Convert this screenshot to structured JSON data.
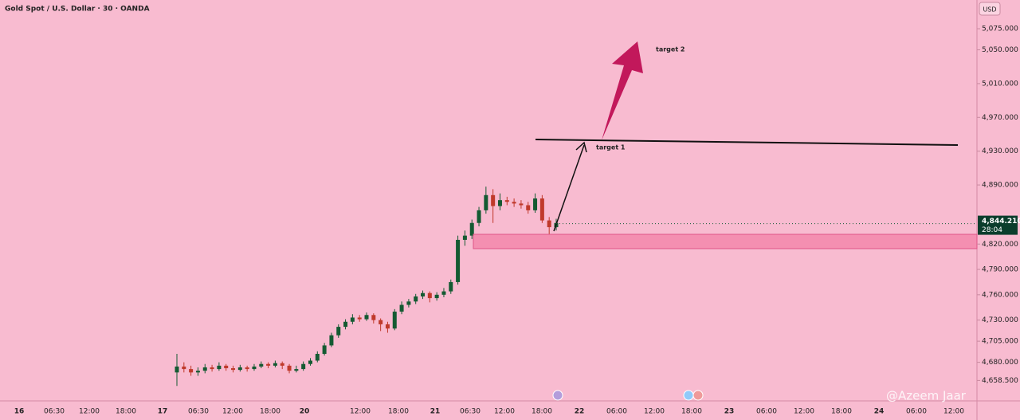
{
  "chart_data": {
    "type": "candlestick",
    "title": "Gold Spot / U.S. Dollar · 30 · OANDA",
    "currency": "USD",
    "ylim": [
      4640,
      5109
    ],
    "yticks": [
      {
        "value": 5075,
        "label": "5,075.000"
      },
      {
        "value": 5050,
        "label": "5,050.000"
      },
      {
        "value": 5010,
        "label": "5,010.000"
      },
      {
        "value": 4970,
        "label": "4,970.000"
      },
      {
        "value": 4930,
        "label": "4,930.000"
      },
      {
        "value": 4890,
        "label": "4,890.000"
      },
      {
        "value": 4820,
        "label": "4,820.000"
      },
      {
        "value": 4790,
        "label": "4,790.000"
      },
      {
        "value": 4760,
        "label": "4,760.000"
      },
      {
        "value": 4730,
        "label": "4,730.000"
      },
      {
        "value": 4705,
        "label": "4,705.000"
      },
      {
        "value": 4680,
        "label": "4,680.000"
      },
      {
        "value": 4658.5,
        "label": "4,658.500"
      }
    ],
    "x_labels": [
      "16",
      "06:30",
      "12:00",
      "18:00",
      "17",
      "06:30",
      "12:00",
      "18:00",
      "20",
      "12:00",
      "18:00",
      "21",
      "06:30",
      "12:00",
      "18:00",
      "22",
      "06:00",
      "12:00",
      "18:00",
      "23",
      "06:00",
      "12:00",
      "18:00",
      "24",
      "06:00",
      "12:00"
    ],
    "up_color": "#145a32",
    "down_color": "#c0392b",
    "open": [
      4668,
      4675,
      4672,
      4668,
      4670,
      4674,
      4672,
      4676,
      4673,
      4671,
      4674,
      4672,
      4675,
      4678,
      4676,
      4679,
      4676,
      4670,
      4672,
      4678,
      4682,
      4690,
      4700,
      4712,
      4722,
      4728,
      4733,
      4731,
      4736,
      4730,
      4725,
      4720,
      4740,
      4748,
      4752,
      4758,
      4762,
      4756,
      4760,
      4764,
      4775,
      4825,
      4830,
      4845,
      4860,
      4878,
      4865,
      4872,
      4870,
      4868,
      4866,
      4860,
      4874,
      4848,
      4840
    ],
    "high": [
      4690,
      4680,
      4676,
      4674,
      4678,
      4677,
      4680,
      4678,
      4676,
      4677,
      4676,
      4678,
      4681,
      4680,
      4682,
      4681,
      4678,
      4676,
      4681,
      4685,
      4693,
      4703,
      4715,
      4725,
      4731,
      4737,
      4736,
      4739,
      4738,
      4732,
      4728,
      4743,
      4752,
      4755,
      4761,
      4765,
      4764,
      4763,
      4768,
      4778,
      4830,
      4836,
      4849,
      4864,
      4888,
      4885,
      4880,
      4876,
      4874,
      4872,
      4870,
      4880,
      4878,
      4852,
      4850
    ],
    "low": [
      4652,
      4668,
      4664,
      4664,
      4667,
      4669,
      4670,
      4670,
      4668,
      4669,
      4669,
      4670,
      4673,
      4673,
      4674,
      4672,
      4667,
      4668,
      4670,
      4676,
      4680,
      4688,
      4698,
      4709,
      4719,
      4725,
      4728,
      4729,
      4726,
      4717,
      4715,
      4718,
      4737,
      4745,
      4749,
      4755,
      4751,
      4753,
      4757,
      4761,
      4772,
      4818,
      4826,
      4841,
      4856,
      4845,
      4860,
      4866,
      4864,
      4862,
      4856,
      4857,
      4845,
      4823,
      4836
    ],
    "close": [
      4675,
      4672,
      4668,
      4670,
      4674,
      4672,
      4676,
      4673,
      4671,
      4674,
      4672,
      4675,
      4678,
      4676,
      4679,
      4676,
      4670,
      4672,
      4678,
      4682,
      4690,
      4700,
      4712,
      4722,
      4728,
      4733,
      4731,
      4736,
      4730,
      4725,
      4720,
      4740,
      4748,
      4752,
      4758,
      4762,
      4756,
      4760,
      4764,
      4775,
      4825,
      4830,
      4845,
      4860,
      4878,
      4865,
      4872,
      4870,
      4868,
      4866,
      4860,
      4874,
      4848,
      4840,
      4845
    ],
    "last_price": {
      "value": 4844.21,
      "label": "4,844.210"
    },
    "countdown": "28:04",
    "annotations": [
      "target 1",
      "target  2"
    ],
    "watermark": "@Azeem Jaar"
  }
}
